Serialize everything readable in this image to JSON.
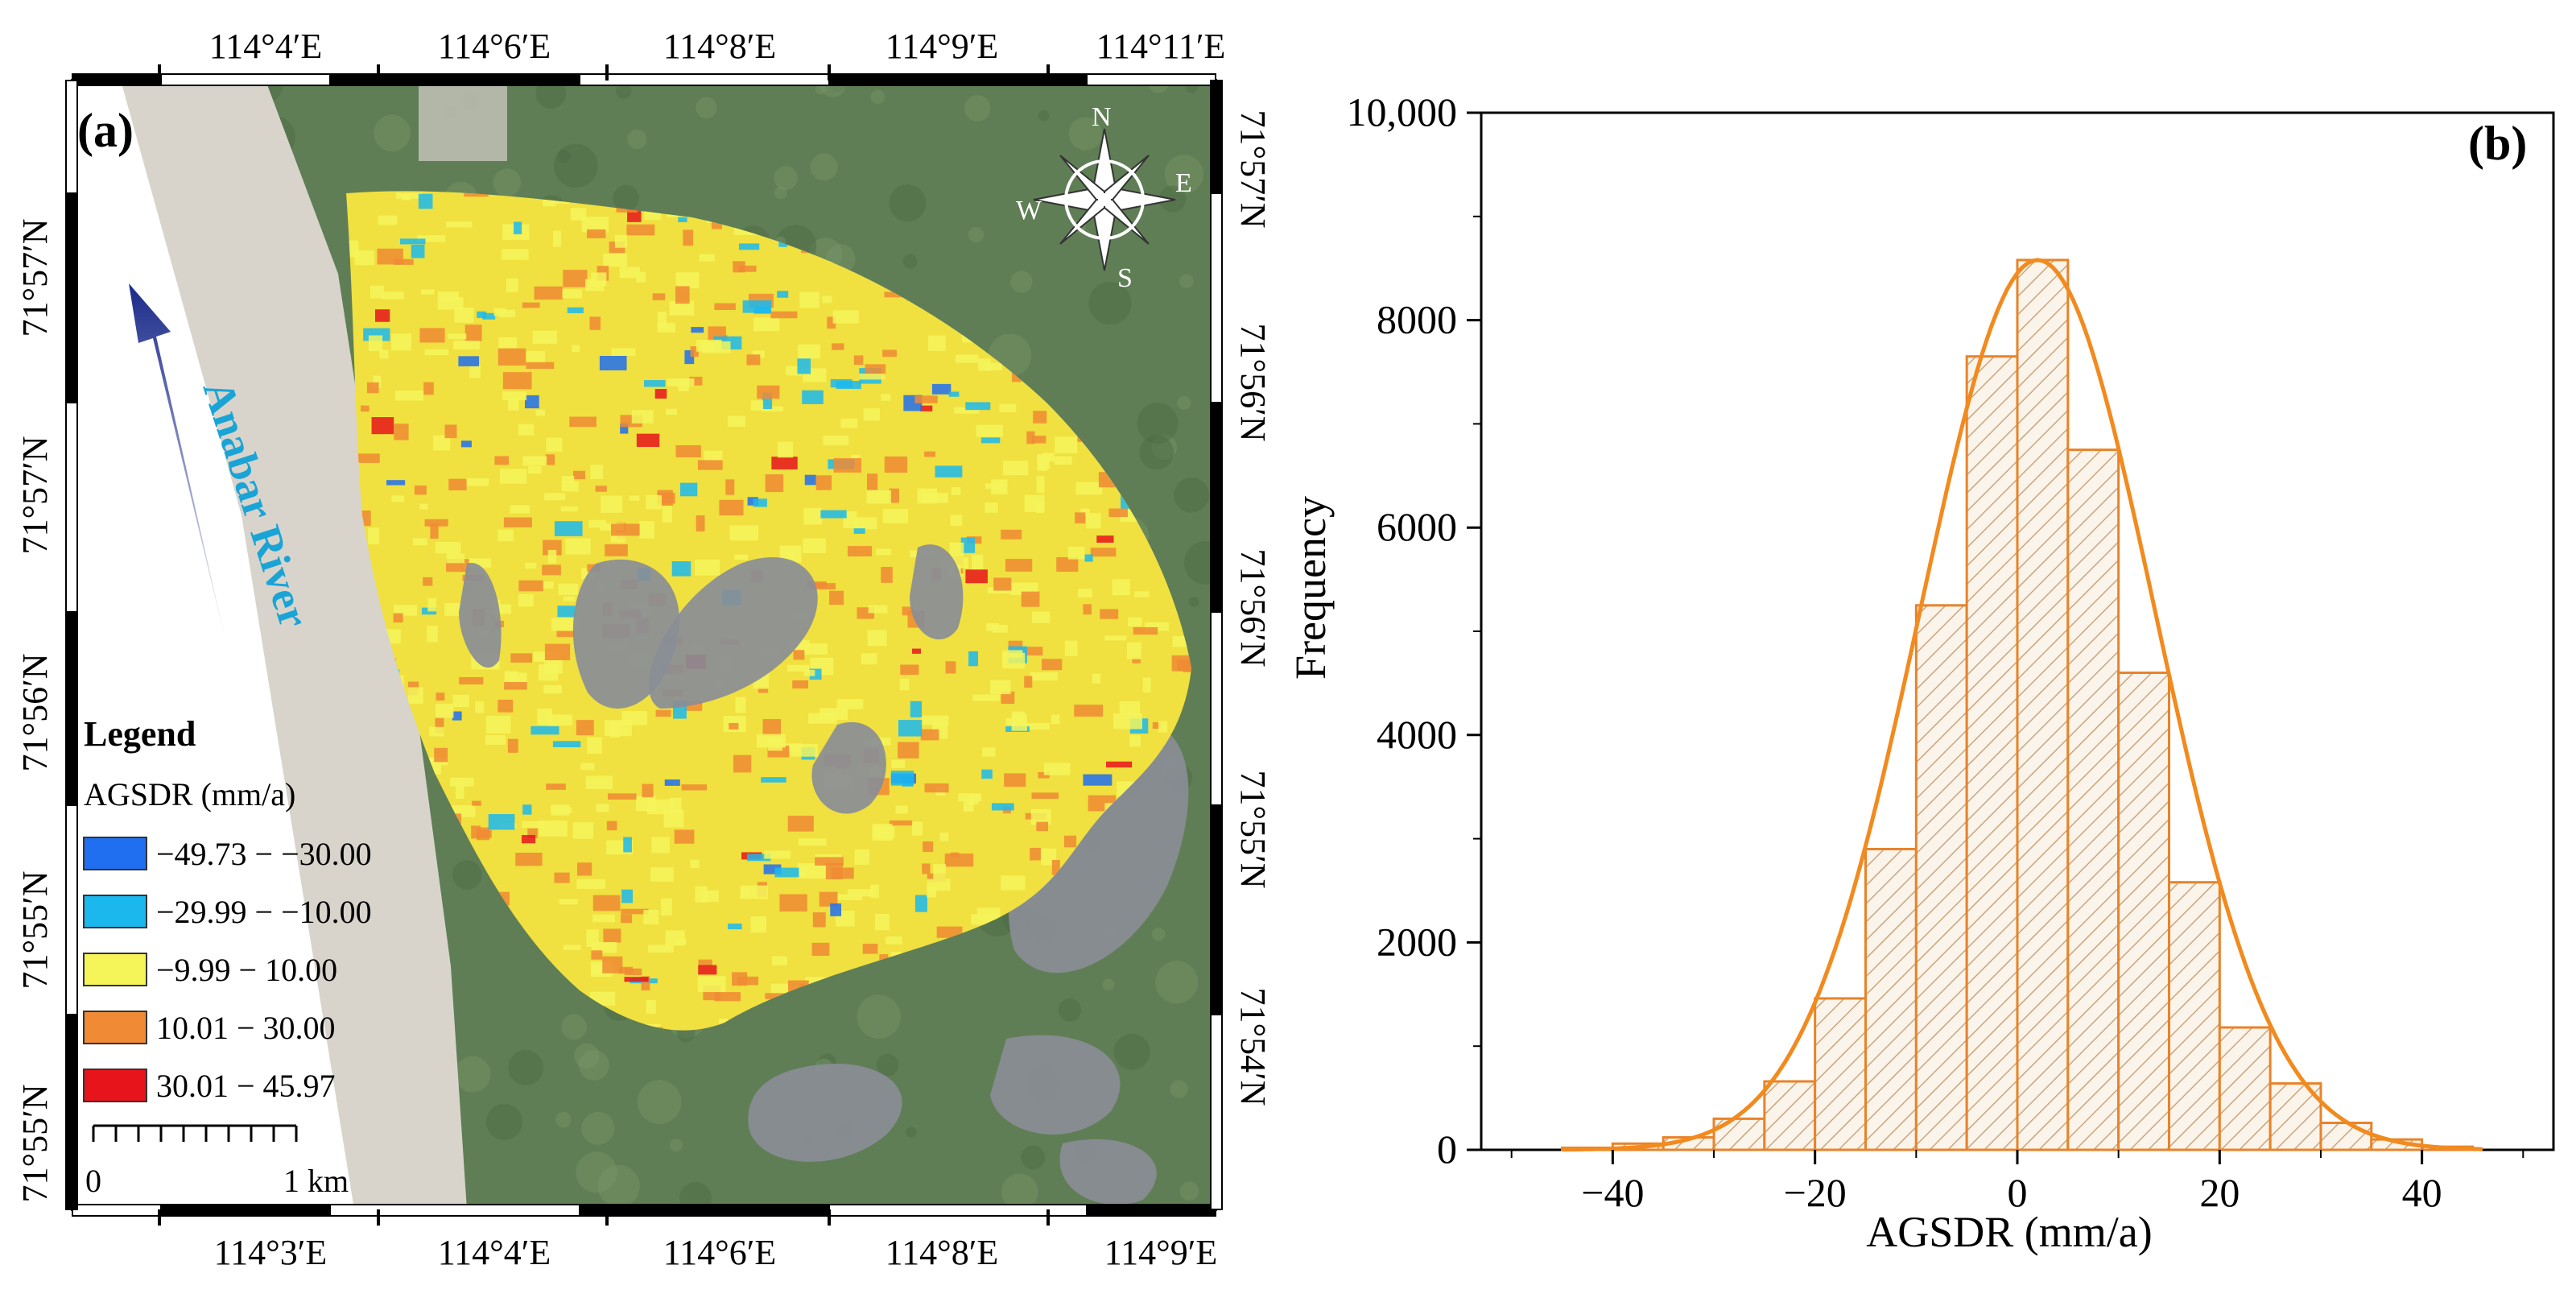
{
  "panel_a": {
    "label": "(a)",
    "top_ticks": [
      "114°4′E",
      "114°6′E",
      "114°8′E",
      "114°9′E",
      "114°11′E"
    ],
    "bottom_ticks": [
      "114°3′E",
      "114°4′E",
      "114°6′E",
      "114°8′E",
      "114°9′E"
    ],
    "left_ticks": [
      "71°57′N",
      "71°57′N",
      "71°56′N",
      "71°55′N",
      "71°55′N"
    ],
    "right_ticks": [
      "71°57′N",
      "71°56′N",
      "71°56′N",
      "71°55′N",
      "71°54′N"
    ],
    "river_label": "Anabar River",
    "compass": {
      "n": "N",
      "s": "S",
      "e": "E",
      "w": "W"
    },
    "legend": {
      "title": "Legend",
      "subtitle": "AGSDR (mm/a)",
      "items": [
        {
          "label": "−49.73 − −30.00",
          "color": "#1f6ff0"
        },
        {
          "label": "−29.99 − −10.00",
          "color": "#1bb8ee"
        },
        {
          "label": "−9.99 − 10.00",
          "color": "#f5f55a"
        },
        {
          "label": "10.01 − 30.00",
          "color": "#f08a34"
        },
        {
          "label": "30.01 − 45.97",
          "color": "#e8141c"
        }
      ]
    },
    "scale_bar": {
      "start": "0",
      "end": "1 km"
    },
    "map_colors": {
      "terrain": "#5f7e55",
      "river": "#d8d4cc",
      "rock": "#8a8d96",
      "deform": "#f0e040"
    }
  },
  "chart_data": {
    "type": "bar",
    "label": "(b)",
    "xlabel": "AGSDR (mm/a)",
    "ylabel": "Frequency",
    "xlim": [
      -53,
      53
    ],
    "ylim": [
      0,
      10000
    ],
    "xticks": [
      -40,
      -20,
      0,
      20,
      40
    ],
    "xtick_labels": [
      "−40",
      "−20",
      "0",
      "20",
      "40"
    ],
    "yticks": [
      0,
      2000,
      4000,
      6000,
      8000,
      10000
    ],
    "ytick_labels": [
      "0",
      "2000",
      "4000",
      "6000",
      "8000",
      "10,000"
    ],
    "bin_width": 5,
    "bins": [
      {
        "center": -42.5,
        "value": 20
      },
      {
        "center": -37.5,
        "value": 60
      },
      {
        "center": -32.5,
        "value": 120
      },
      {
        "center": -27.5,
        "value": 300
      },
      {
        "center": -22.5,
        "value": 660
      },
      {
        "center": -17.5,
        "value": 1460
      },
      {
        "center": -12.5,
        "value": 2900
      },
      {
        "center": -7.5,
        "value": 5250
      },
      {
        "center": -2.5,
        "value": 7650
      },
      {
        "center": 2.5,
        "value": 8580
      },
      {
        "center": 7.5,
        "value": 6750
      },
      {
        "center": 12.5,
        "value": 4600
      },
      {
        "center": 17.5,
        "value": 2580
      },
      {
        "center": 22.5,
        "value": 1180
      },
      {
        "center": 27.5,
        "value": 640
      },
      {
        "center": 32.5,
        "value": 260
      },
      {
        "center": 37.5,
        "value": 100
      },
      {
        "center": 42.5,
        "value": 30
      }
    ],
    "fit": {
      "type": "gaussian",
      "mean": 2,
      "sd": 11.6,
      "peak": 8580
    },
    "colors": {
      "bar": "#e8832a",
      "fit": "#f28a1e"
    }
  }
}
